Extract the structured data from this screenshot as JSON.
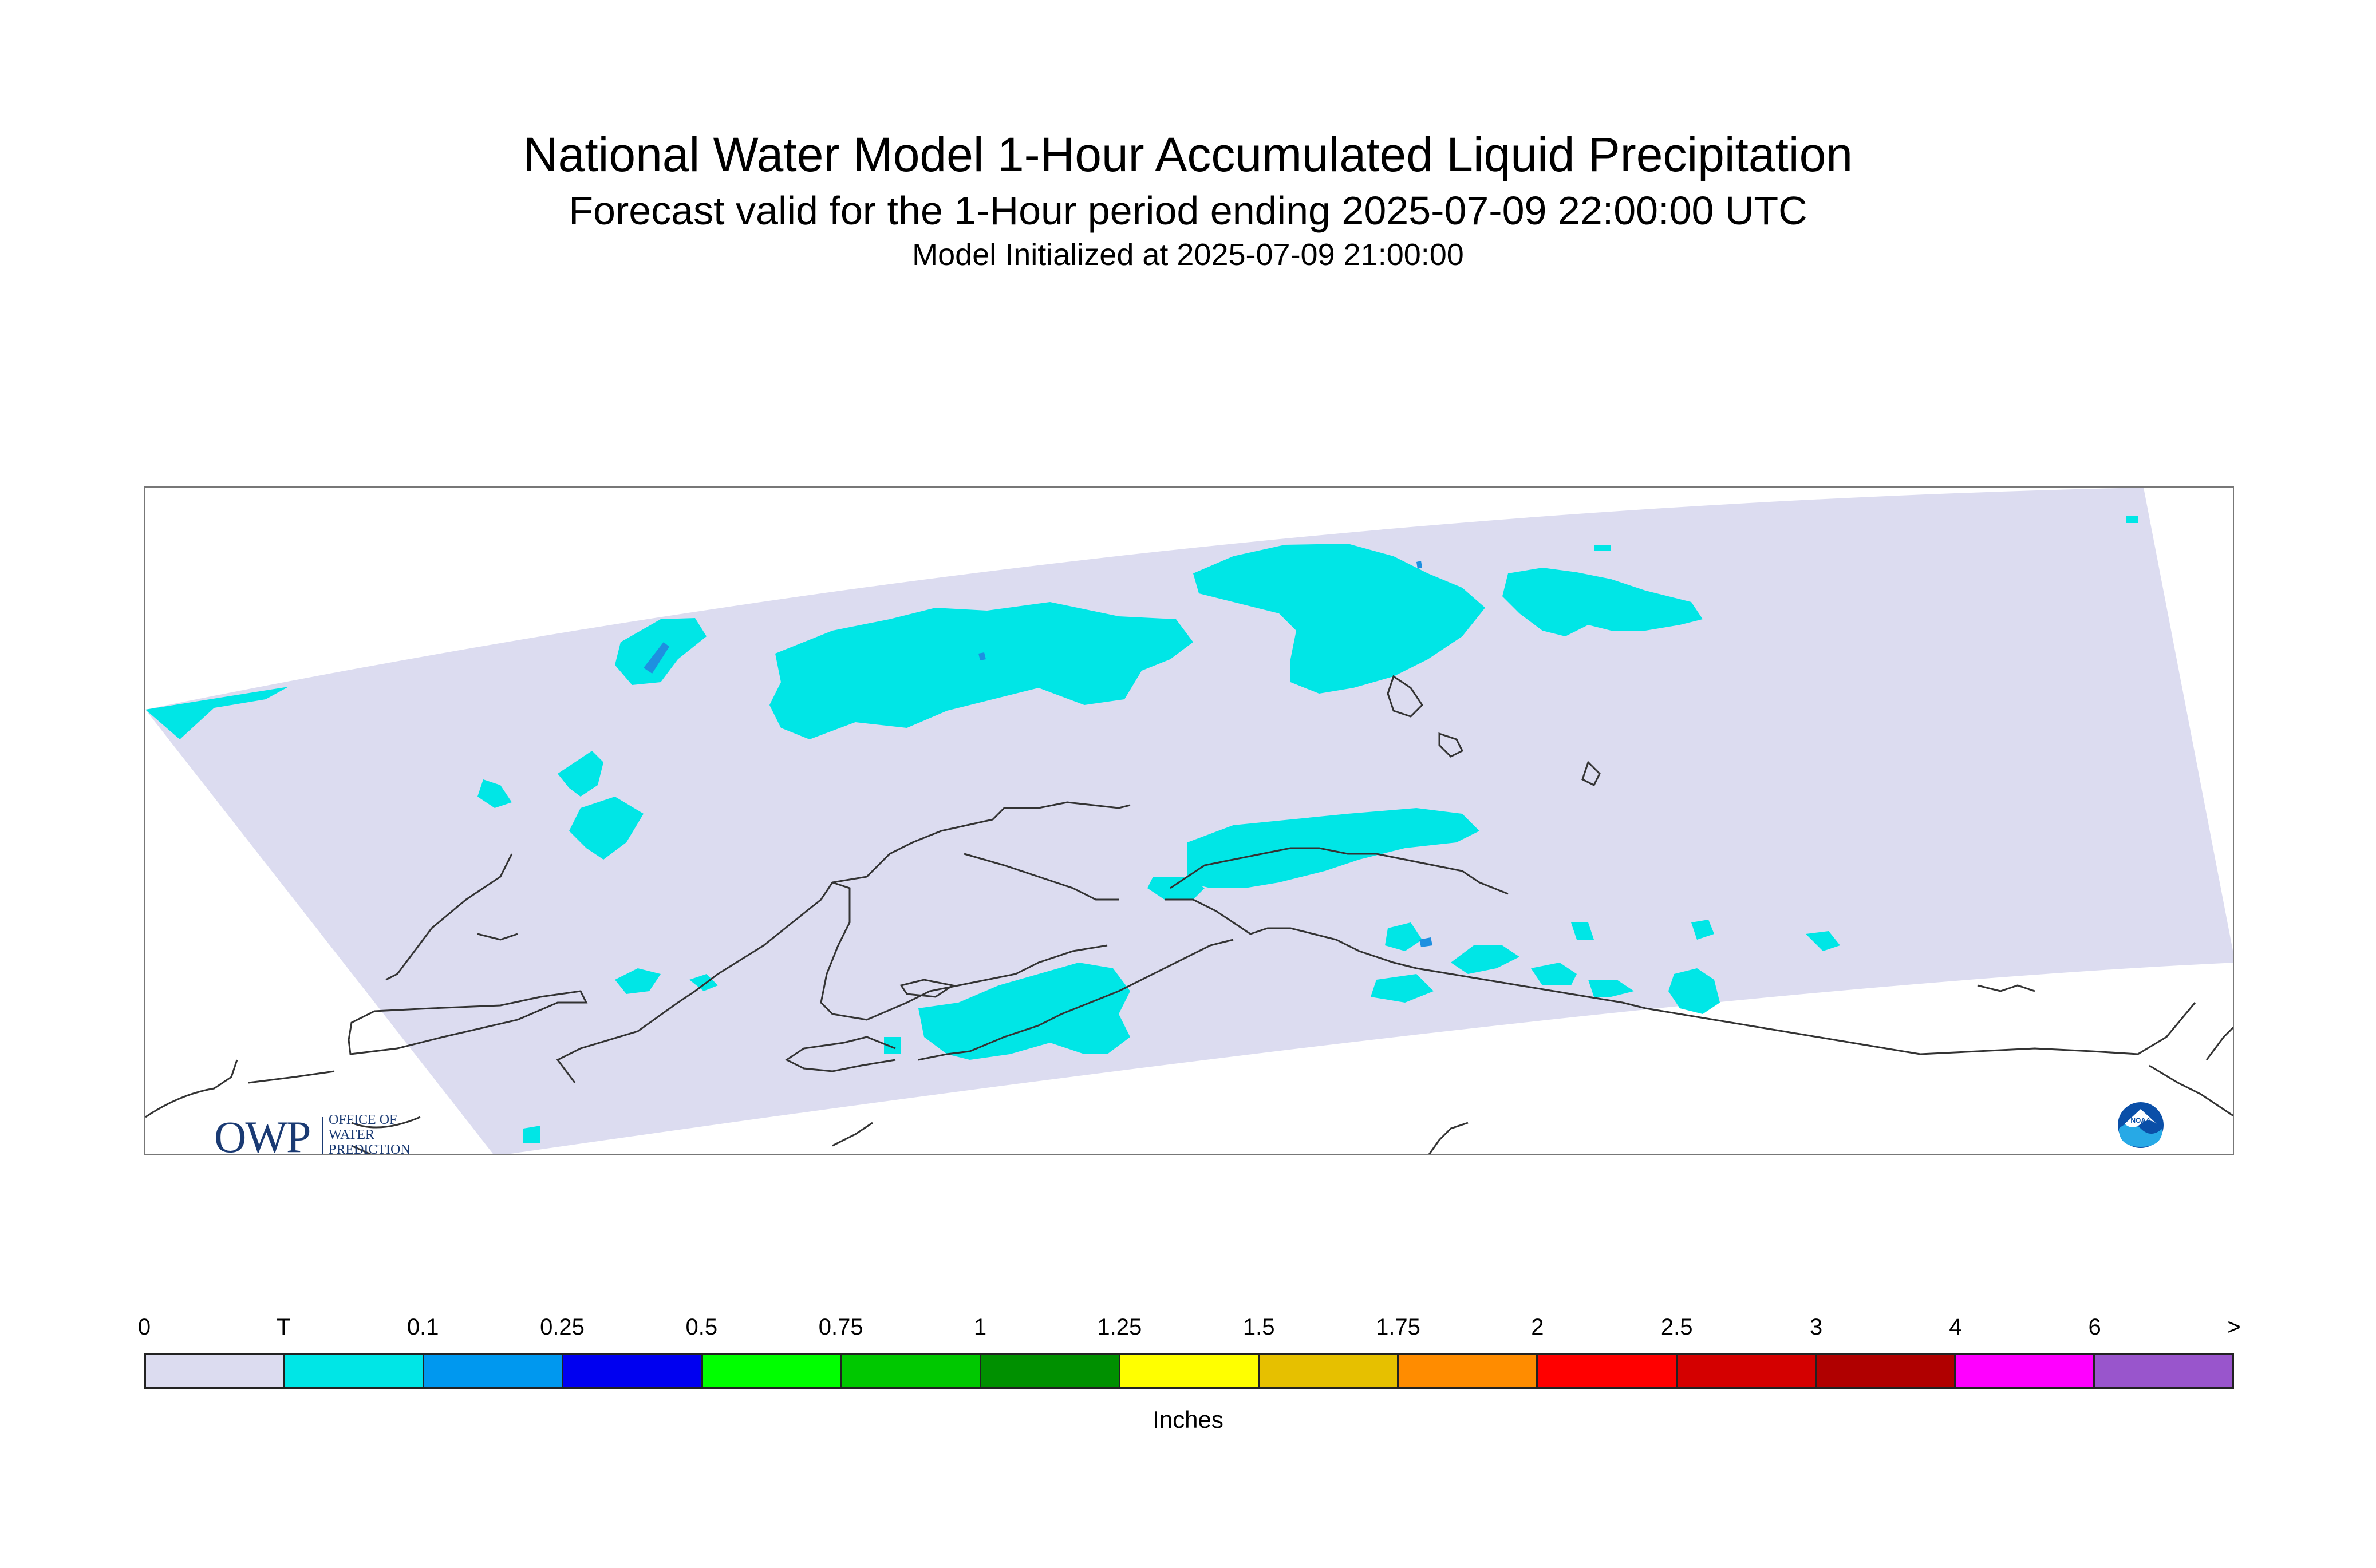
{
  "title": "National Water Model 1-Hour Accumulated Liquid Precipitation",
  "subtitle": "Forecast valid for the 1-Hour period ending 2025-07-09 22:00:00 UTC",
  "init_line": "Model Initialized at 2025-07-09 21:00:00",
  "map": {
    "domain_color": "#dcdcf0",
    "coast_color": "#333333",
    "precip_light_color": "#00e6e6",
    "precip_mod_color": "#1e90e0"
  },
  "logos": {
    "owp": {
      "mark": "OWP",
      "line1": "OFFICE OF",
      "line2": "WATER",
      "line3": "PREDICTION"
    },
    "noaa": {
      "text": "NOAA"
    }
  },
  "legend": {
    "labels": [
      "0",
      "T",
      "0.1",
      "0.25",
      "0.5",
      "0.75",
      "1",
      "1.25",
      "1.5",
      "1.75",
      "2",
      "2.5",
      "3",
      "4",
      "6",
      ">"
    ],
    "colors": [
      "#dcdcf0",
      "#00e6e6",
      "#0098ef",
      "#0000f0",
      "#00ff00",
      "#00c800",
      "#009000",
      "#ffff00",
      "#e6c000",
      "#ff8c00",
      "#ff0000",
      "#d40000",
      "#b00000",
      "#ff00ff",
      "#9955cc"
    ],
    "units": "Inches"
  }
}
